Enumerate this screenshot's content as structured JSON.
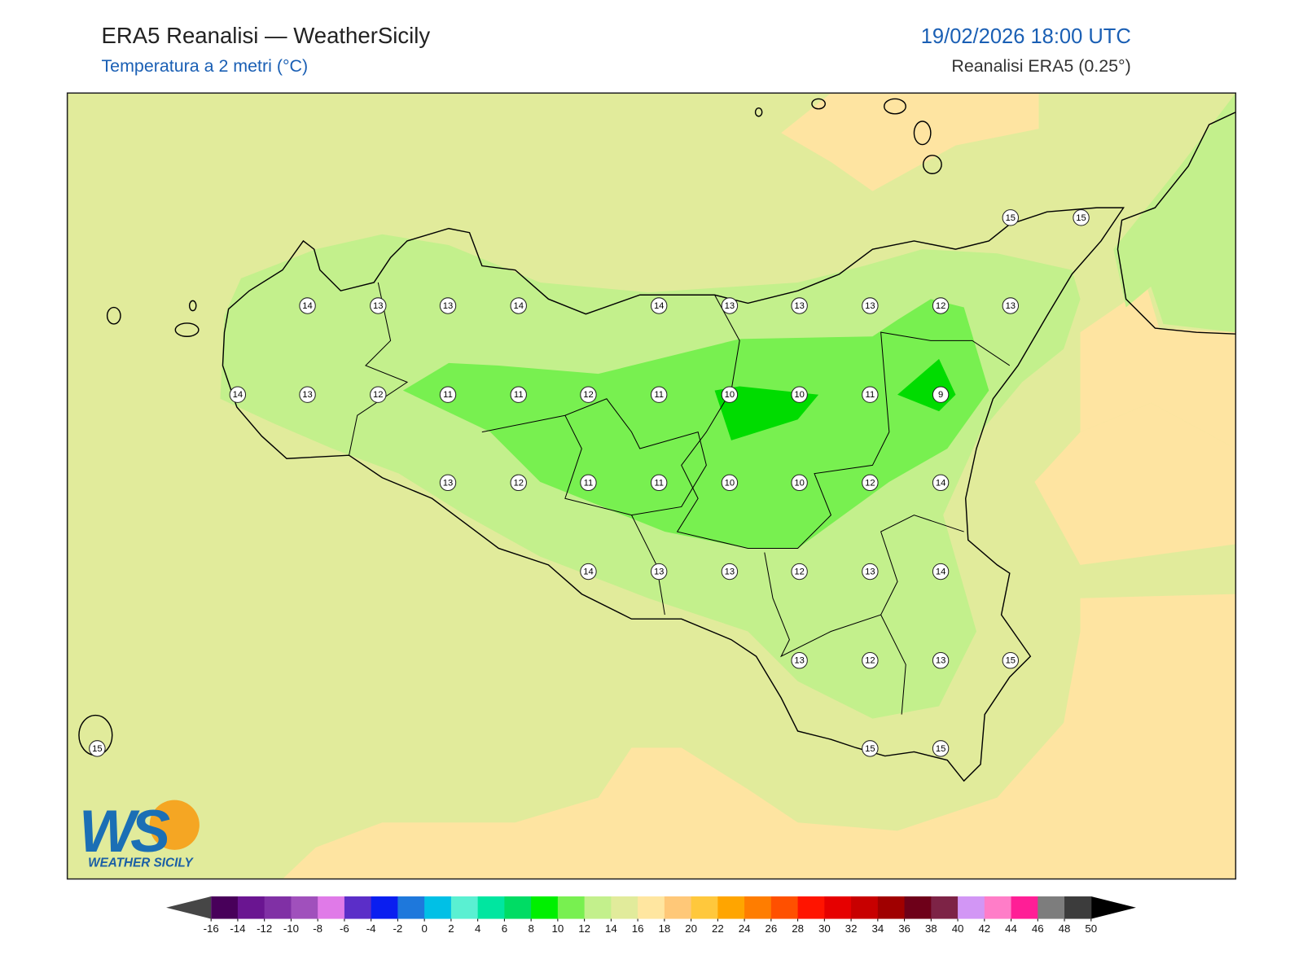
{
  "header": {
    "title": "ERA5 Reanalisi — WeatherSicily",
    "subtitle": "Temperatura a 2 metri (°C)",
    "datetime": "19/02/2026 18:00 UTC",
    "source": "Reanalisi ERA5 (0.25°)"
  },
  "map": {
    "values": [
      15,
      15,
      14,
      13,
      13,
      14,
      14,
      13,
      13,
      13,
      12,
      13,
      14,
      13,
      12,
      11,
      11,
      12,
      11,
      10,
      10,
      11,
      9,
      13,
      12,
      11,
      11,
      10,
      10,
      12,
      14,
      14,
      13,
      13,
      12,
      13,
      14,
      13,
      12,
      13,
      15,
      15,
      15,
      15
    ]
  },
  "colorbar": {
    "ticks": [
      -16,
      -14,
      -12,
      -10,
      -8,
      -6,
      -4,
      -2,
      0,
      2,
      4,
      6,
      8,
      10,
      12,
      14,
      16,
      18,
      20,
      22,
      24,
      26,
      28,
      30,
      32,
      34,
      36,
      38,
      40,
      42,
      44,
      46,
      48,
      50
    ],
    "colors": [
      "#48005a",
      "#6a1591",
      "#8030a5",
      "#a050bc",
      "#e07ae8",
      "#5b2ec8",
      "#0a1ef0",
      "#1e78dc",
      "#00c0e6",
      "#5af0d2",
      "#00e6a0",
      "#00dc64",
      "#00f000",
      "#78f050",
      "#c3f08c",
      "#e1eb9b",
      "#ffe6a0",
      "#ffc878",
      "#ffc83c",
      "#ffa500",
      "#ff7d00",
      "#ff5000",
      "#ff1400",
      "#e60000",
      "#c80000",
      "#a00000",
      "#6e0019",
      "#7d2346",
      "#d296f5",
      "#ff7dc8",
      "#ff1e96",
      "#7d7d7d",
      "#3c3c3c"
    ],
    "under_color": "#464646",
    "over_color": "#000000"
  },
  "logo": {
    "mark": "WS",
    "name": "WEATHER SICILY"
  }
}
